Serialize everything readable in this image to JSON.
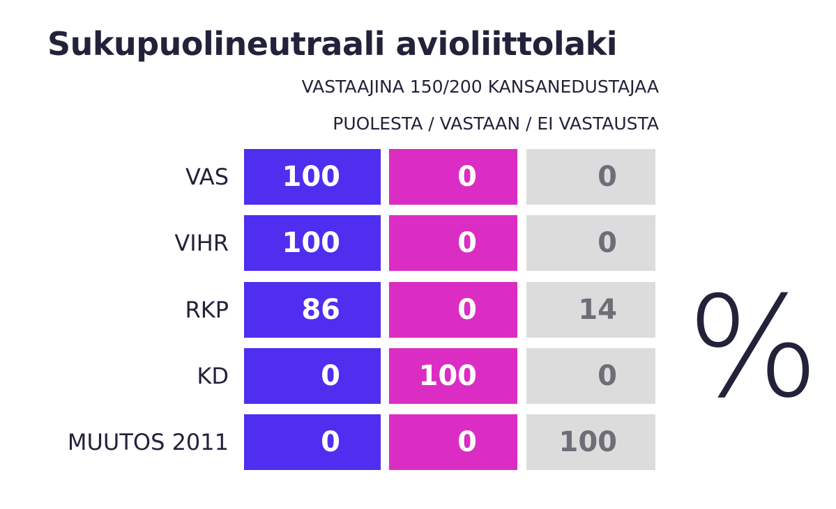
{
  "header": {
    "title": "Sukupuolineutraali avioliittolaki",
    "subtitle": "VASTAAJINA 150/200 KANSANEDUSTAJAA",
    "legend": "PUOLESTA / VASTAAN / EI VASTAUSTA"
  },
  "table": {
    "rows": [
      [
        "VAS",
        100,
        0,
        0
      ],
      [
        "VIHR",
        100,
        0,
        0
      ],
      [
        "RKP",
        86,
        0,
        14
      ],
      [
        "KD",
        0,
        100,
        0
      ],
      [
        "MUUTOS 2011",
        0,
        0,
        100
      ]
    ]
  },
  "unit": "%"
}
